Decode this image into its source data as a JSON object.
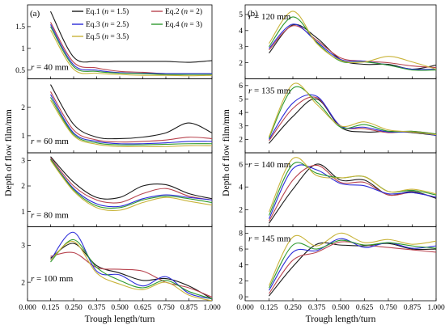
{
  "chart_data": {
    "type": "line",
    "figure_tags": [
      "(a)",
      "(b)"
    ],
    "xlabel": "Trough length/turn",
    "ylabel": "Depth of flow film/mm",
    "x": [
      0.125,
      0.25,
      0.375,
      0.5,
      0.625,
      0.75,
      0.875,
      1.0
    ],
    "xticks": [
      "0.000",
      "0.125",
      "0.250",
      "0.375",
      "0.500",
      "0.625",
      "0.750",
      "0.875",
      "1.000"
    ],
    "xlim": [
      0.0,
      1.0
    ],
    "series_styles": [
      {
        "key": "eq1",
        "color": "#1a1a1a"
      },
      {
        "key": "eq2",
        "color": "#b8444f"
      },
      {
        "key": "eq3",
        "color": "#2b2bd9"
      },
      {
        "key": "eq4",
        "color": "#2f9a2f"
      },
      {
        "key": "eq5",
        "color": "#c9b43a"
      }
    ],
    "legend": {
      "placement": "top-right of panel (a) first plot",
      "entries": [
        {
          "pre": "Eq.1 (",
          "var": "n",
          "post": " = 1.5)"
        },
        {
          "pre": "Eq.2 (",
          "var": "n",
          "post": " = 2)"
        },
        {
          "pre": "Eq.3 (",
          "var": "n",
          "post": " = 2.5)"
        },
        {
          "pre": "Eq.4 (",
          "var": "n",
          "post": " = 3)"
        },
        {
          "pre": "Eq.5 (",
          "var": "n",
          "post": " = 3.5)"
        }
      ]
    },
    "panels": [
      {
        "column": "a",
        "row": 0,
        "var": "r",
        "label_post": " = 40 mm",
        "ylim": [
          0.3,
          2.0
        ],
        "yticks": [
          0.5,
          1.0,
          1.5
        ],
        "series": [
          [
            1.85,
            0.8,
            0.7,
            0.7,
            0.7,
            0.7,
            0.68,
            0.72
          ],
          [
            1.6,
            0.68,
            0.55,
            0.47,
            0.45,
            0.42,
            0.42,
            0.42
          ],
          [
            1.55,
            0.62,
            0.5,
            0.44,
            0.43,
            0.42,
            0.42,
            0.42
          ],
          [
            1.5,
            0.58,
            0.47,
            0.43,
            0.42,
            0.4,
            0.4,
            0.4
          ],
          [
            1.42,
            0.52,
            0.43,
            0.4,
            0.38,
            0.38,
            0.37,
            0.38
          ]
        ]
      },
      {
        "column": "a",
        "row": 1,
        "var": "r",
        "label_post": " = 60 mm",
        "ylim": [
          0.4,
          3.0
        ],
        "yticks": [
          1,
          2
        ],
        "series": [
          [
            2.8,
            1.4,
            0.95,
            0.9,
            0.95,
            1.1,
            1.45,
            1.1
          ],
          [
            2.55,
            1.2,
            0.85,
            0.78,
            0.8,
            0.85,
            0.95,
            0.9
          ],
          [
            2.45,
            1.1,
            0.8,
            0.72,
            0.72,
            0.75,
            0.8,
            0.8
          ],
          [
            2.35,
            1.05,
            0.75,
            0.68,
            0.68,
            0.7,
            0.72,
            0.72
          ],
          [
            2.25,
            1.0,
            0.7,
            0.62,
            0.62,
            0.62,
            0.65,
            0.65
          ]
        ]
      },
      {
        "column": "a",
        "row": 2,
        "var": "r",
        "label_post": " = 80 mm",
        "ylim": [
          0.4,
          3.3
        ],
        "yticks": [
          1,
          2,
          3
        ],
        "series": [
          [
            3.15,
            2.15,
            1.55,
            1.55,
            2.0,
            2.05,
            1.7,
            1.5
          ],
          [
            3.1,
            2.0,
            1.45,
            1.35,
            1.7,
            1.9,
            1.6,
            1.45
          ],
          [
            3.05,
            1.9,
            1.3,
            1.2,
            1.5,
            1.65,
            1.55,
            1.45
          ],
          [
            3.05,
            1.85,
            1.22,
            1.15,
            1.45,
            1.6,
            1.5,
            1.35
          ],
          [
            3.0,
            1.8,
            1.15,
            1.05,
            1.35,
            1.55,
            1.4,
            1.25
          ]
        ]
      },
      {
        "column": "a",
        "row": 3,
        "var": "r",
        "label_post": " = 100 mm",
        "ylim": [
          1.5,
          3.5
        ],
        "yticks": [
          2,
          3
        ],
        "series": [
          [
            2.65,
            3.05,
            2.45,
            2.25,
            2.05,
            2.1,
            1.9,
            1.55
          ],
          [
            2.7,
            2.8,
            2.4,
            2.35,
            2.3,
            2.0,
            1.85,
            1.6
          ],
          [
            2.6,
            3.35,
            2.3,
            2.2,
            1.9,
            2.15,
            1.7,
            1.55
          ],
          [
            2.55,
            3.15,
            2.4,
            2.05,
            1.85,
            2.05,
            1.75,
            1.55
          ],
          [
            2.6,
            3.1,
            2.25,
            1.95,
            1.8,
            2.0,
            1.65,
            1.5
          ]
        ]
      },
      {
        "column": "b",
        "row": 0,
        "var": "r",
        "label_post": " = 120 mm",
        "ylim": [
          1.0,
          5.6
        ],
        "yticks": [
          2,
          3,
          4,
          5
        ],
        "series": [
          [
            2.6,
            4.35,
            3.55,
            2.2,
            1.9,
            1.9,
            1.6,
            1.85
          ],
          [
            2.8,
            4.3,
            3.4,
            2.3,
            2.1,
            2.0,
            1.8,
            1.7
          ],
          [
            2.9,
            4.4,
            3.3,
            2.2,
            2.1,
            1.85,
            1.6,
            1.6
          ],
          [
            3.0,
            4.85,
            3.25,
            2.1,
            2.05,
            1.85,
            1.55,
            1.55
          ],
          [
            3.2,
            5.2,
            3.2,
            2.15,
            2.05,
            2.4,
            2.05,
            1.6
          ]
        ]
      },
      {
        "column": "b",
        "row": 1,
        "var": "r",
        "label_post": " = 135 mm",
        "ylim": [
          1.0,
          6.5
        ],
        "yticks": [
          2,
          3,
          4,
          5,
          6
        ],
        "series": [
          [
            1.7,
            3.7,
            5.0,
            2.9,
            2.55,
            2.6,
            2.5,
            2.3
          ],
          [
            1.9,
            4.3,
            5.1,
            3.0,
            2.8,
            2.5,
            2.6,
            2.4
          ],
          [
            2.0,
            4.7,
            5.2,
            3.0,
            2.9,
            2.55,
            2.55,
            2.3
          ],
          [
            2.1,
            5.8,
            4.8,
            2.9,
            3.1,
            2.6,
            2.6,
            2.4
          ],
          [
            2.2,
            6.1,
            4.6,
            3.0,
            3.3,
            2.7,
            2.55,
            2.35
          ]
        ]
      },
      {
        "column": "b",
        "row": 2,
        "var": "r",
        "label_post": " = 140 mm",
        "ylim": [
          0.5,
          7.0
        ],
        "yticks": [
          2,
          4,
          6
        ],
        "series": [
          [
            0.8,
            3.8,
            6.0,
            4.6,
            4.6,
            3.3,
            3.6,
            3.0
          ],
          [
            1.0,
            4.6,
            5.9,
            4.4,
            4.4,
            3.3,
            3.5,
            3.1
          ],
          [
            1.2,
            5.6,
            5.5,
            4.3,
            4.1,
            3.4,
            3.5,
            3.1
          ],
          [
            1.5,
            6.0,
            5.2,
            4.8,
            4.9,
            3.6,
            3.7,
            3.3
          ],
          [
            1.8,
            6.5,
            5.0,
            4.8,
            4.9,
            3.6,
            3.8,
            3.4
          ]
        ]
      },
      {
        "column": "b",
        "row": 3,
        "var": "r",
        "label_post": " = 145 mm",
        "ylim": [
          -0.5,
          8.8
        ],
        "yticks": [
          0,
          2,
          4,
          6,
          8
        ],
        "series": [
          [
            0.1,
            3.8,
            6.6,
            6.5,
            6.4,
            6.7,
            6.0,
            6.0
          ],
          [
            0.4,
            4.6,
            5.6,
            6.9,
            6.5,
            6.2,
            5.9,
            5.6
          ],
          [
            0.8,
            5.6,
            5.8,
            7.3,
            6.2,
            6.8,
            6.1,
            6.4
          ],
          [
            1.1,
            6.5,
            6.0,
            7.1,
            6.5,
            6.8,
            6.4,
            6.1
          ],
          [
            1.4,
            7.5,
            6.4,
            8.0,
            6.8,
            7.2,
            6.6,
            7.0
          ]
        ]
      }
    ]
  }
}
